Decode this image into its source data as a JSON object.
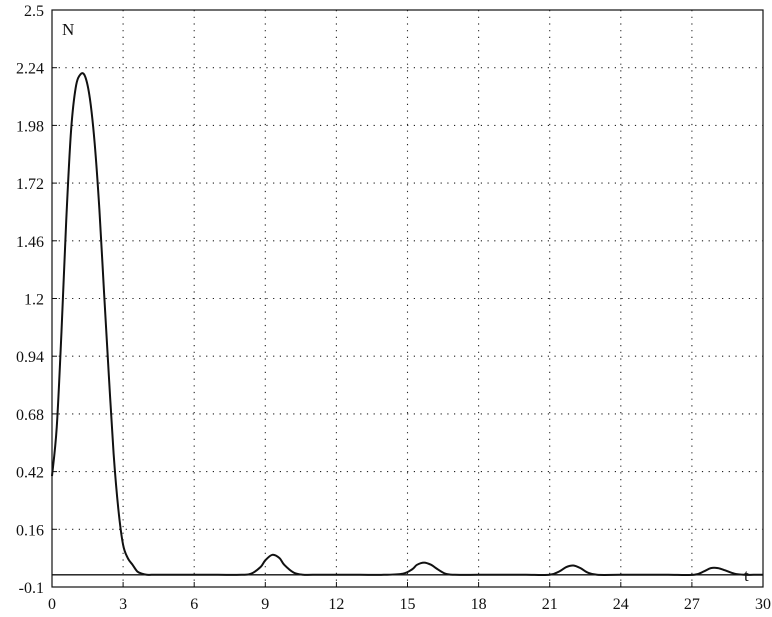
{
  "chart_data": {
    "type": "line",
    "xlabel": "t",
    "ylabel": "N",
    "xlim": [
      0,
      30
    ],
    "ylim": [
      -0.1,
      2.5
    ],
    "x_ticks": [
      0,
      3,
      6,
      9,
      12,
      15,
      18,
      21,
      24,
      27,
      30
    ],
    "y_ticks": [
      -0.1,
      0.16,
      0.42,
      0.68,
      0.94,
      1.2,
      1.46,
      1.72,
      1.98,
      2.24,
      2.5
    ],
    "x_tick_labels": [
      "0",
      "3",
      "6",
      "9",
      "12",
      "15",
      "18",
      "21",
      "24",
      "27",
      "30"
    ],
    "y_tick_labels": [
      "-0.1",
      "0.16",
      "0.42",
      "0.68",
      "0.94",
      "1.2",
      "1.46",
      "1.72",
      "1.98",
      "2.24",
      "2.5"
    ],
    "grid": "dotted",
    "series": [
      {
        "color": "#111111",
        "x": [
          0,
          0.2,
          0.4,
          0.6,
          0.8,
          1.0,
          1.2,
          1.4,
          1.6,
          1.8,
          2.0,
          2.2,
          2.4,
          2.6,
          2.8,
          3.0,
          3.2,
          3.4,
          3.6,
          3.8,
          4.0,
          4.2,
          4.5,
          5,
          6,
          7,
          8,
          8.4,
          8.8,
          9.0,
          9.3,
          9.6,
          9.8,
          10.2,
          10.6,
          11,
          12,
          13,
          14,
          14.8,
          15.2,
          15.4,
          15.7,
          16.0,
          16.2,
          16.6,
          17,
          18,
          19,
          20,
          21.0,
          21.4,
          21.7,
          22.0,
          22.3,
          22.6,
          23,
          24,
          25,
          26,
          27.1,
          27.5,
          27.8,
          28.1,
          28.4,
          28.8,
          29.2,
          29.6,
          30
        ],
        "y": [
          0.4,
          0.62,
          1.05,
          1.55,
          1.95,
          2.15,
          2.21,
          2.2,
          2.1,
          1.9,
          1.6,
          1.22,
          0.85,
          0.5,
          0.25,
          0.09,
          0.03,
          0.0,
          -0.03,
          -0.04,
          -0.045,
          -0.045,
          -0.045,
          -0.045,
          -0.045,
          -0.045,
          -0.045,
          -0.04,
          -0.01,
          0.02,
          0.045,
          0.03,
          0.0,
          -0.035,
          -0.045,
          -0.045,
          -0.045,
          -0.045,
          -0.045,
          -0.04,
          -0.02,
          0.0,
          0.01,
          0.0,
          -0.015,
          -0.04,
          -0.045,
          -0.045,
          -0.045,
          -0.045,
          -0.045,
          -0.03,
          -0.01,
          -0.003,
          -0.015,
          -0.035,
          -0.045,
          -0.045,
          -0.045,
          -0.045,
          -0.045,
          -0.03,
          -0.015,
          -0.015,
          -0.025,
          -0.04,
          -0.045,
          -0.045,
          -0.045
        ]
      }
    ]
  }
}
